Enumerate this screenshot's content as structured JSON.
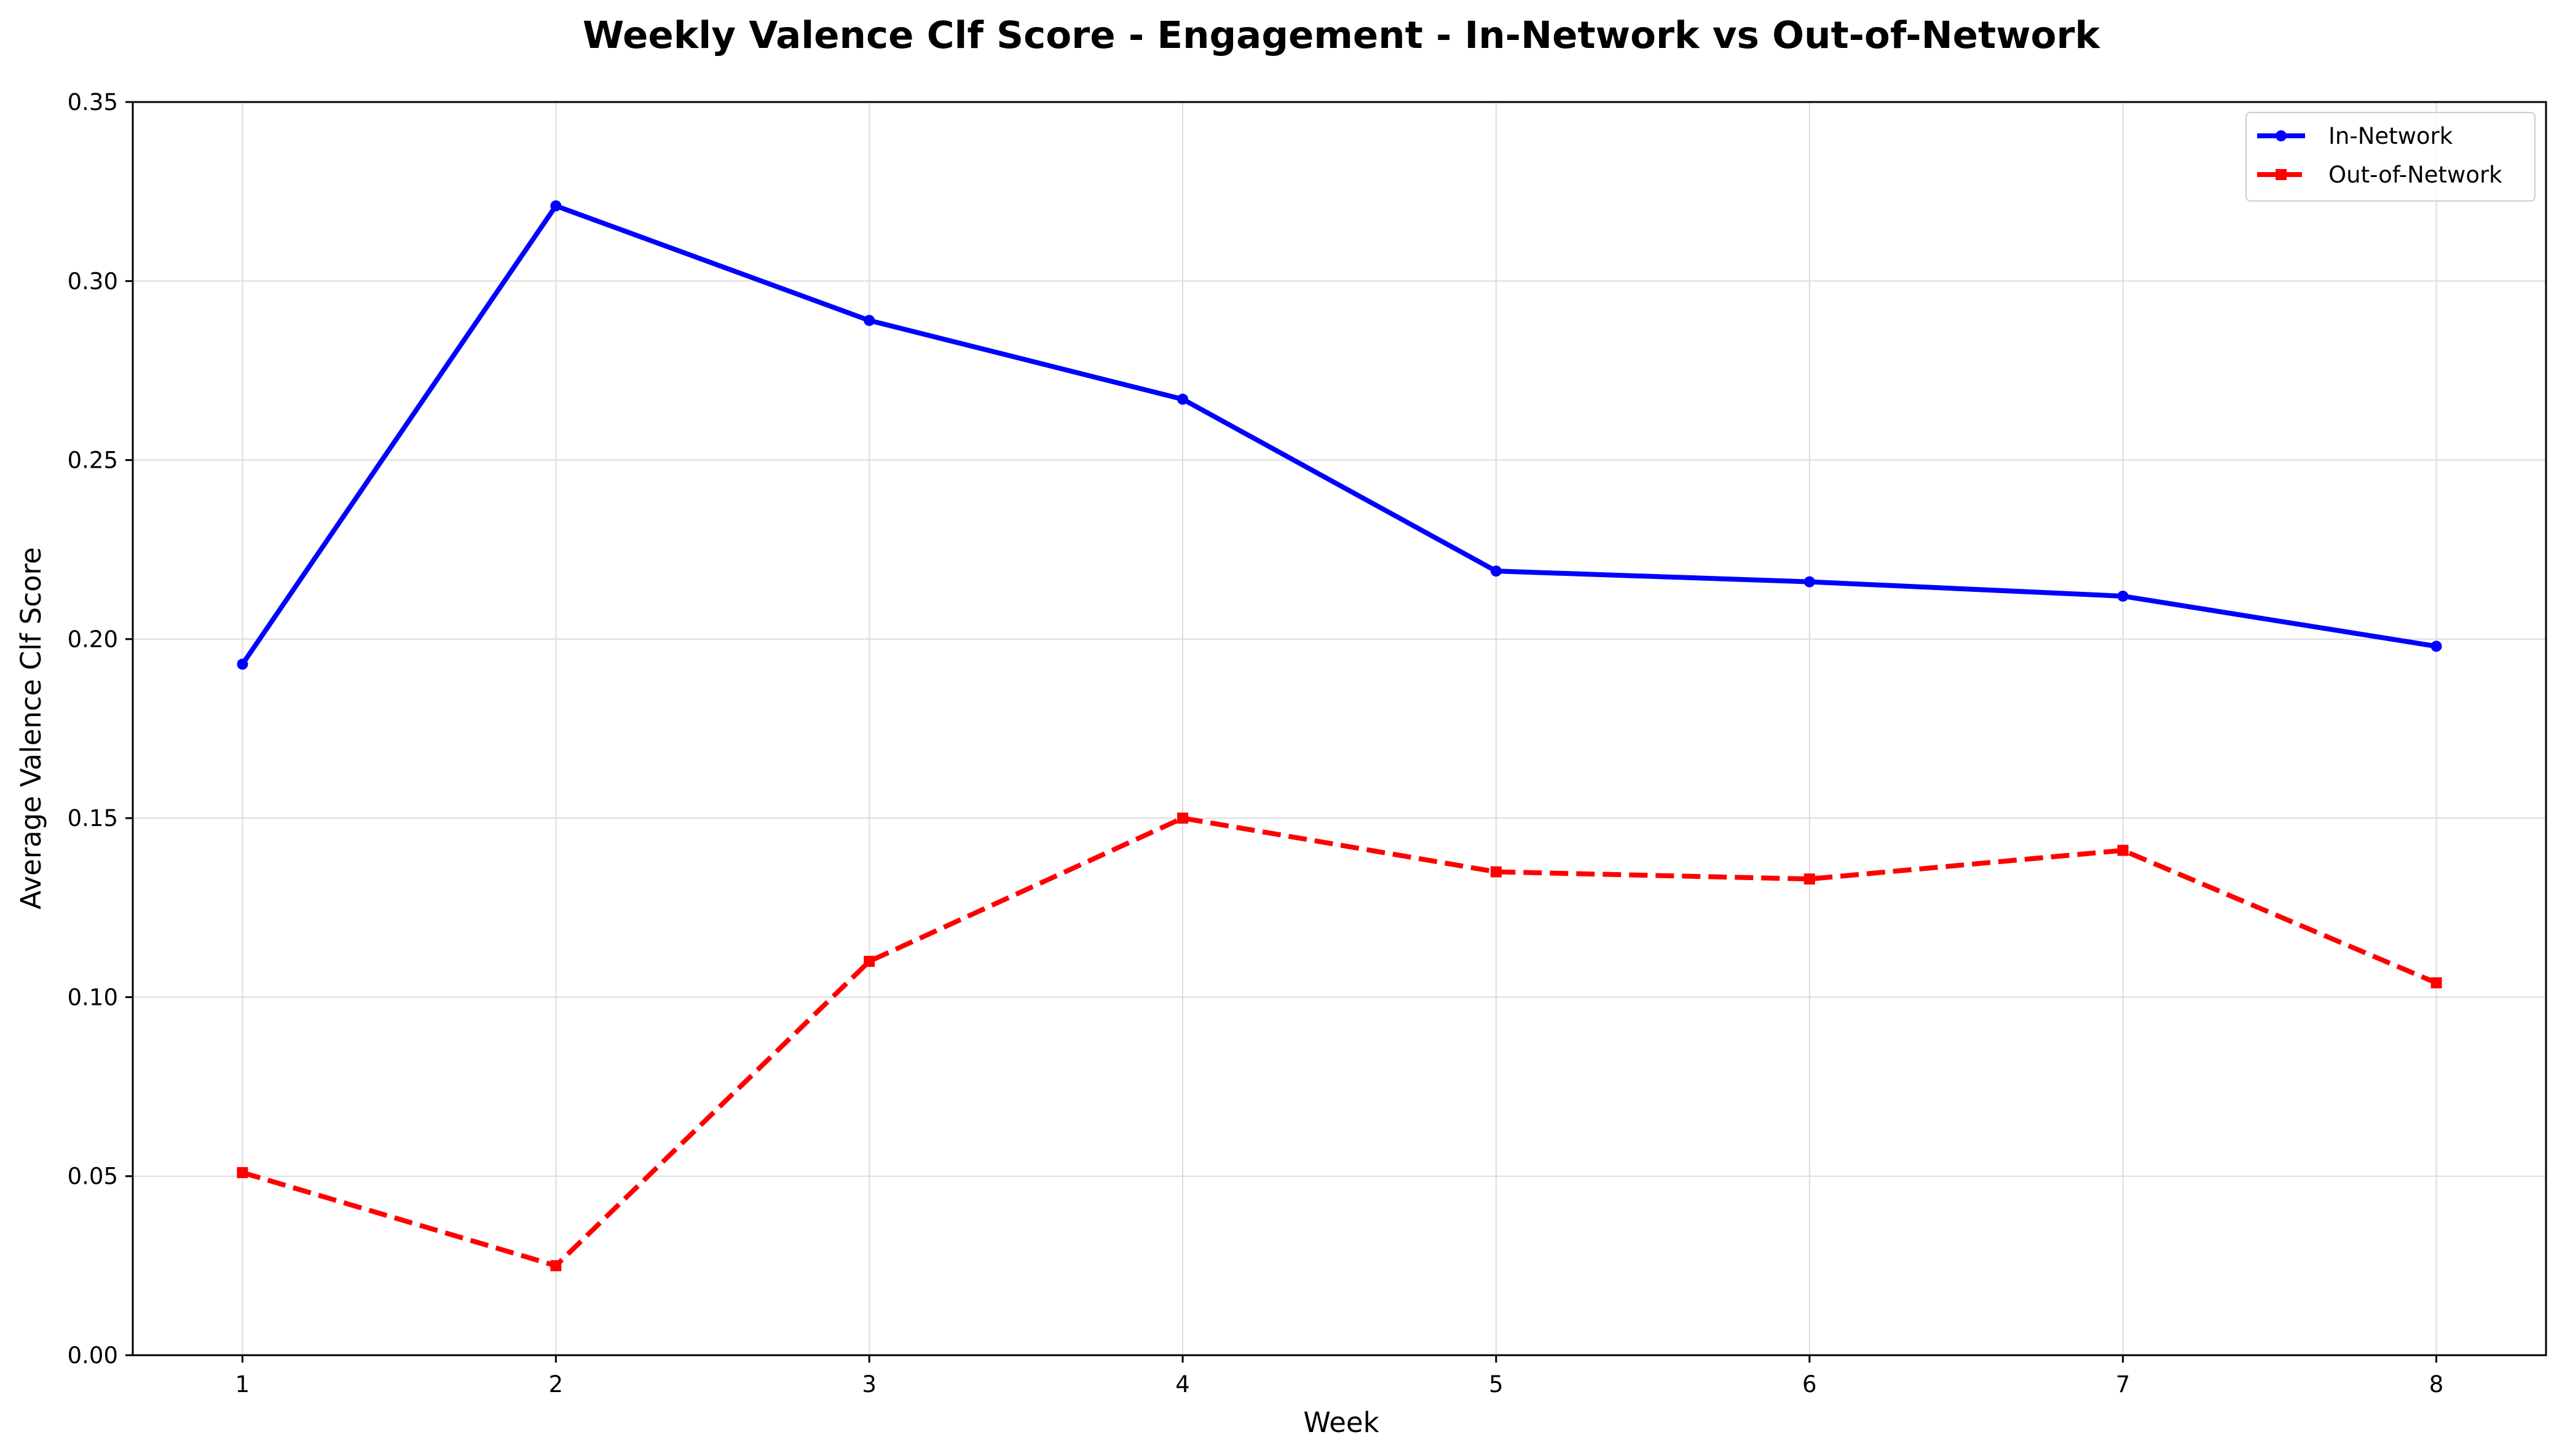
{
  "chart_data": {
    "type": "line",
    "title": "Weekly Valence Clf Score - Engagement - In-Network vs Out-of-Network",
    "xlabel": "Week",
    "ylabel": "Average Valence Clf Score",
    "x": [
      1,
      2,
      3,
      4,
      5,
      6,
      7,
      8
    ],
    "x_tick_labels": [
      "1",
      "2",
      "3",
      "4",
      "5",
      "6",
      "7",
      "8"
    ],
    "y_tick_labels": [
      "0.00",
      "0.05",
      "0.10",
      "0.15",
      "0.20",
      "0.25",
      "0.30",
      "0.35"
    ],
    "y_ticks": [
      0.0,
      0.05,
      0.1,
      0.15,
      0.2,
      0.25,
      0.3,
      0.35
    ],
    "xlim": [
      0.65,
      8.35
    ],
    "ylim": [
      0.0,
      0.35
    ],
    "grid": true,
    "legend_position": "top-right",
    "series": [
      {
        "name": "In-Network",
        "values": [
          0.193,
          0.321,
          0.289,
          0.267,
          0.219,
          0.216,
          0.212,
          0.198
        ],
        "color": "#0000ff",
        "line_style": "solid",
        "marker": "circle"
      },
      {
        "name": "Out-of-Network",
        "values": [
          0.051,
          0.025,
          0.11,
          0.15,
          0.135,
          0.133,
          0.141,
          0.104
        ],
        "color": "#ff0000",
        "line_style": "dashed",
        "marker": "square"
      }
    ]
  }
}
